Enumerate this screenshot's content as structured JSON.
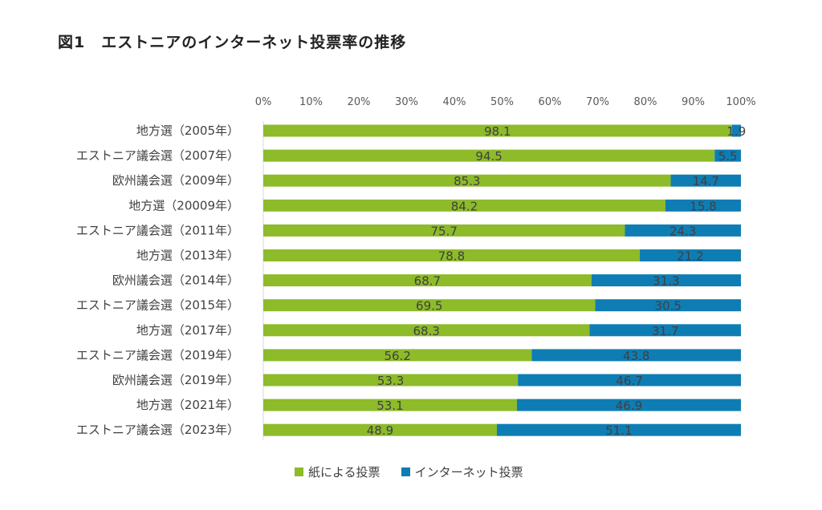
{
  "title": "図1　エストニアのインターネット投票率の推移",
  "colors": {
    "paper": "#8dbb2a",
    "internet": "#0e7db4",
    "axis": "#d9d9d9"
  },
  "legend": {
    "position": "bottom",
    "items": [
      {
        "label": "紙による投票",
        "color": "#8dbb2a"
      },
      {
        "label": "インターネット投票",
        "color": "#0e7db4"
      }
    ]
  },
  "chart_data": {
    "type": "bar",
    "orientation": "horizontal",
    "stacked": "percent",
    "title": "図1　エストニアのインターネット投票率の推移",
    "xlim": [
      0,
      100
    ],
    "xticks": [
      "0%",
      "10%",
      "20%",
      "30%",
      "40%",
      "50%",
      "60%",
      "70%",
      "80%",
      "90%",
      "100%"
    ],
    "categories": [
      "地方選（2005年）",
      "エストニア議会選（2007年）",
      "欧州議会選（2009年）",
      "地方選（20009年）",
      "エストニア議会選（2011年）",
      "地方選（2013年）",
      "欧州議会選（2014年）",
      "エストニア議会選（2015年）",
      "地方選（2017年）",
      "エストニア議会選（2019年）",
      "欧州議会選（2019年）",
      "地方選（2021年）",
      "エストニア議会選（2023年）"
    ],
    "series": [
      {
        "name": "紙による投票",
        "color": "#8dbb2a",
        "values": [
          98.1,
          94.5,
          85.3,
          84.2,
          75.7,
          78.8,
          68.7,
          69.5,
          68.3,
          56.2,
          53.3,
          53.1,
          48.9
        ]
      },
      {
        "name": "インターネット投票",
        "color": "#0e7db4",
        "values": [
          1.9,
          5.5,
          14.7,
          15.8,
          24.3,
          21.2,
          31.3,
          30.5,
          31.7,
          43.8,
          46.7,
          46.9,
          51.1
        ]
      }
    ],
    "data_labels": true,
    "grid": false
  }
}
